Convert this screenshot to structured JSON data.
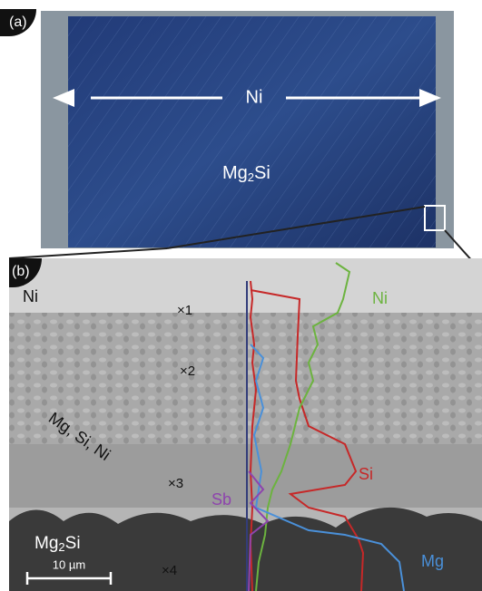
{
  "panel_a": {
    "tag": "(a)",
    "arrow_label": "Ni",
    "material": [
      "Mg",
      "2",
      "Si"
    ]
  },
  "panel_b": {
    "tag": "(b)",
    "top_layer": "Ni",
    "points": [
      "×1",
      "×2",
      "×3",
      "×4"
    ],
    "phase_label": "Mg, Si, Ni",
    "profiles": {
      "ni": "Ni",
      "si": "Si",
      "sb": "Sb",
      "mg": "Mg"
    },
    "substrate": [
      "Mg",
      "2",
      "Si"
    ],
    "scale_bar": "10 µm"
  }
}
